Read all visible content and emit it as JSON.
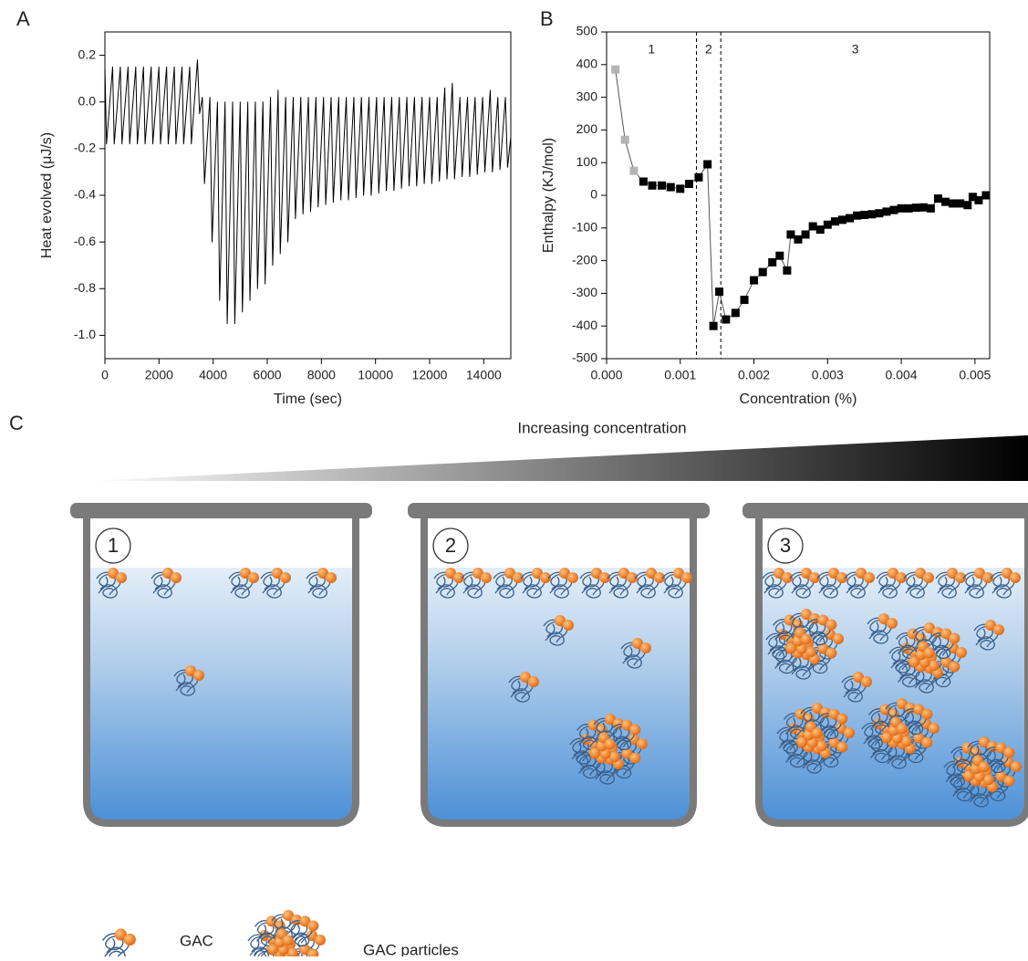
{
  "chart_data": [
    {
      "type": "line",
      "panel_label": "A",
      "x_label": "Time (sec)",
      "y_label": "Heat evolved (μJ/s)",
      "color": "#000000",
      "x": [
        0,
        60,
        285,
        345,
        570,
        630,
        855,
        915,
        1140,
        1200,
        1425,
        1485,
        1710,
        1770,
        1995,
        2055,
        2280,
        2340,
        2565,
        2625,
        2850,
        2910,
        3135,
        3195,
        3420,
        3500,
        3600,
        3680,
        3880,
        3960,
        4160,
        4240,
        4440,
        4520,
        4720,
        4800,
        5000,
        5080,
        5280,
        5360,
        5560,
        5640,
        5840,
        5920,
        6120,
        6200,
        6400,
        6480,
        6680,
        6760,
        6960,
        7040,
        7240,
        7320,
        7520,
        7600,
        7800,
        7880,
        8080,
        8160,
        8360,
        8440,
        8640,
        8720,
        8920,
        9000,
        9200,
        9280,
        9480,
        9560,
        9760,
        9840,
        10040,
        10120,
        10320,
        10400,
        10600,
        10680,
        10880,
        10960,
        11160,
        11240,
        11440,
        11520,
        11720,
        11800,
        12000,
        12080,
        12280,
        12360,
        12560,
        12640,
        12840,
        12920,
        13120,
        13200,
        13400,
        13480,
        13680,
        13760,
        13960,
        14040,
        14240,
        14320,
        14520,
        14600,
        14800,
        14880,
        15000
      ],
      "values": [
        0.15,
        -0.18,
        0.15,
        -0.18,
        0.15,
        -0.18,
        0.15,
        -0.18,
        0.15,
        -0.18,
        0.15,
        -0.18,
        0.15,
        -0.18,
        0.15,
        -0.18,
        0.15,
        -0.18,
        0.15,
        -0.18,
        0.15,
        -0.18,
        0.15,
        -0.18,
        0.18,
        -0.05,
        0.02,
        -0.35,
        0.02,
        -0.6,
        0.0,
        -0.85,
        0.0,
        -0.95,
        0.0,
        -0.95,
        0.0,
        -0.9,
        0.0,
        -0.85,
        0.0,
        -0.8,
        0.0,
        -0.78,
        0.02,
        -0.7,
        0.05,
        -0.65,
        0.02,
        -0.6,
        0.02,
        -0.5,
        0.02,
        -0.48,
        0.02,
        -0.47,
        0.02,
        -0.45,
        0.02,
        -0.44,
        0.02,
        -0.43,
        0.02,
        -0.42,
        0.02,
        -0.42,
        0.02,
        -0.41,
        0.02,
        -0.4,
        0.02,
        -0.4,
        0.02,
        -0.39,
        0.02,
        -0.38,
        0.02,
        -0.38,
        0.02,
        -0.37,
        0.02,
        -0.36,
        0.02,
        -0.36,
        0.02,
        -0.35,
        0.02,
        -0.35,
        0.02,
        -0.34,
        0.06,
        -0.33,
        0.08,
        -0.33,
        0.02,
        -0.32,
        0.02,
        -0.32,
        0.02,
        -0.31,
        0.02,
        -0.3,
        0.05,
        -0.3,
        0.02,
        -0.29,
        0.02,
        -0.28,
        -0.15
      ],
      "xlim": [
        0,
        15000
      ],
      "xticks": [
        0,
        2000,
        4000,
        6000,
        8000,
        10000,
        12000,
        14000
      ],
      "ylim": [
        -1.1,
        0.3
      ],
      "yticks": [
        0.2,
        {
          "value": 0,
          "label": "0.0"
        },
        -0.2,
        -0.4,
        -0.6,
        -0.8,
        {
          "value": -1,
          "label": "-1.0"
        }
      ]
    },
    {
      "type": "scatter",
      "panel_label": "B",
      "x_label": "Concentration (%)",
      "y_label": "Enthalpy (KJ/mol)",
      "line_color": "#555555",
      "series": [
        {
          "color": "#b4b4b4",
          "x": [
            0.00012,
            0.00025,
            0.00037
          ],
          "values": [
            385,
            170,
            75
          ]
        },
        {
          "color": "#000000",
          "x": [
            0.0005,
            0.00062,
            0.00075,
            0.00087,
            0.001,
            0.00112,
            0.00125,
            0.00137,
            0.00145,
            0.00153,
            0.00162,
            0.00175,
            0.00187,
            0.002,
            0.00212,
            0.00225,
            0.00235,
            0.00245,
            0.0025,
            0.0026,
            0.0027,
            0.0028,
            0.0029,
            0.003,
            0.0031,
            0.0032,
            0.0033,
            0.0034,
            0.0035,
            0.0036,
            0.0037,
            0.0038,
            0.0039,
            0.004,
            0.0041,
            0.0042,
            0.0043,
            0.0044,
            0.0045,
            0.0046,
            0.0047,
            0.0048,
            0.0049,
            0.00497,
            0.00505,
            0.00515
          ],
          "values": [
            42,
            30,
            30,
            25,
            20,
            35,
            55,
            95,
            -400,
            -295,
            -380,
            -360,
            -320,
            -260,
            -235,
            -205,
            -185,
            -230,
            -120,
            -135,
            -120,
            -95,
            -105,
            -90,
            -80,
            -75,
            -70,
            -62,
            -60,
            -58,
            -55,
            -50,
            -45,
            -40,
            -40,
            -38,
            -37,
            -40,
            -10,
            -20,
            -25,
            -25,
            -30,
            -5,
            -15,
            0
          ]
        }
      ],
      "vlines": [
        0.00122,
        0.00155
      ],
      "regions": [
        "1",
        "2",
        "3"
      ],
      "xlim": [
        0,
        0.0052
      ],
      "xticks": [
        {
          "value": 0,
          "label": "0.000"
        },
        0.001,
        0.002,
        0.003,
        0.004,
        0.005
      ],
      "ylim": [
        -500,
        500
      ],
      "yticks": [
        -500,
        -400,
        -300,
        -200,
        -100,
        0,
        100,
        200,
        300,
        400,
        500
      ]
    }
  ],
  "diagram": {
    "panel_label": "C",
    "arrow_label": "Increasing concentration",
    "stages": [
      "1",
      "2",
      "3"
    ],
    "legend": [
      "GAC",
      "GAC particles"
    ]
  }
}
